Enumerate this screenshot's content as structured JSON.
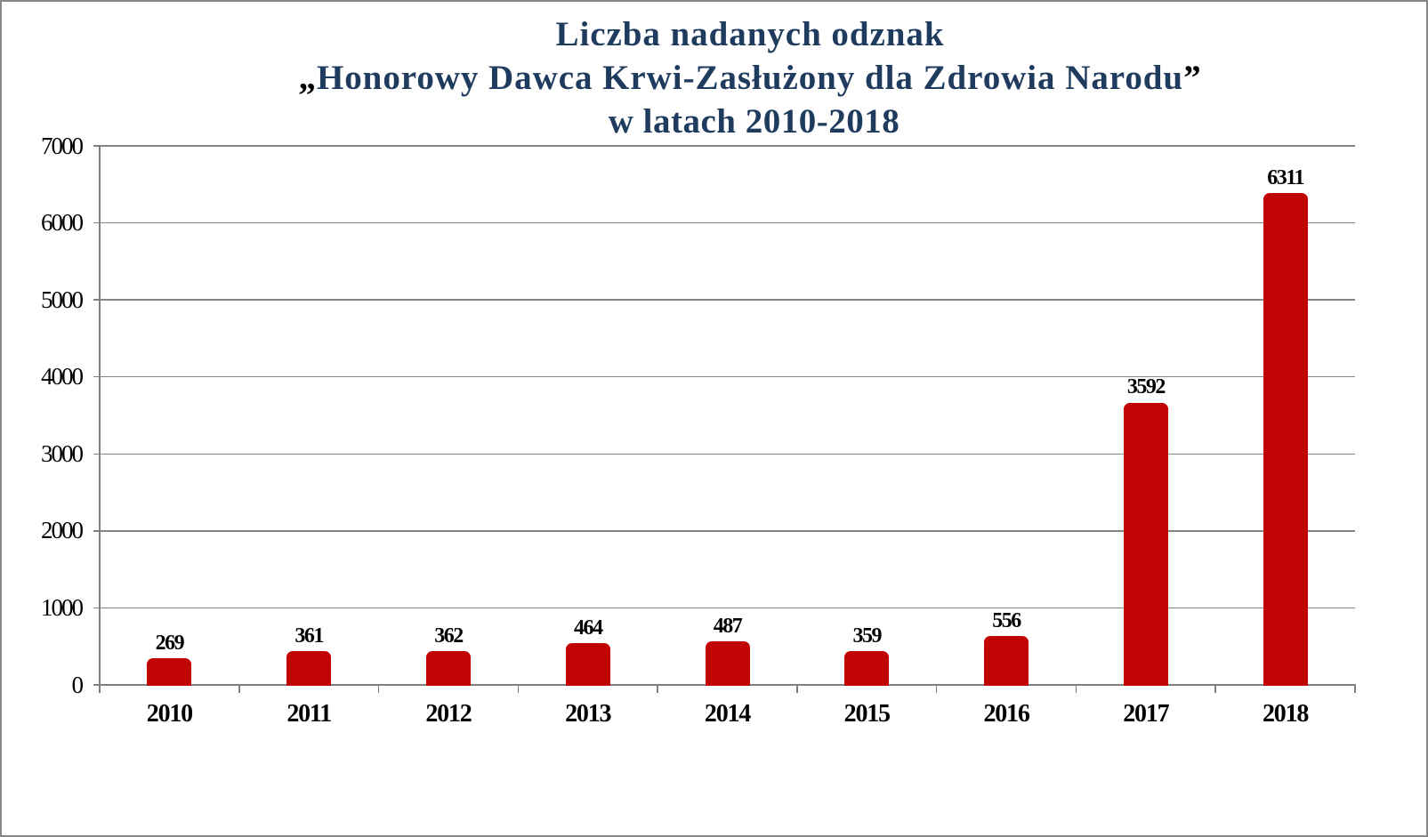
{
  "title": {
    "line1": "Liczba nadanych odznak",
    "line2_open_quote": "„",
    "line2": "Honorowy Dawca Krwi-Zasłużony dla Zdrowia Narodu",
    "line2_close_quote": "”",
    "line3": "w latach 2010-2018"
  },
  "chart_data": {
    "type": "bar",
    "title": "Liczba nadanych odznak „Honorowy Dawca Krwi-Zasłużony dla Zdrowia Narodu” w latach 2010-2018",
    "categories": [
      "2010",
      "2011",
      "2012",
      "2013",
      "2014",
      "2015",
      "2016",
      "2017",
      "2018"
    ],
    "values": [
      269,
      361,
      362,
      464,
      487,
      359,
      556,
      3592,
      6311
    ],
    "series_name": "Liczba nadanych odznak",
    "xlabel": "",
    "ylabel": "",
    "ylim": [
      0,
      7000
    ],
    "ytick_step": 1000,
    "ytick_labels": [
      "0",
      "1000",
      "2000",
      "3000",
      "4000",
      "5000",
      "6000",
      "7000"
    ],
    "grid": true,
    "legend": false,
    "bar_color": "#c00404",
    "axis_color": "#808080",
    "gridline_color": "#858585",
    "title_color": "#1f3b5e",
    "label_color": "#000000",
    "data_labels_shown": true
  }
}
